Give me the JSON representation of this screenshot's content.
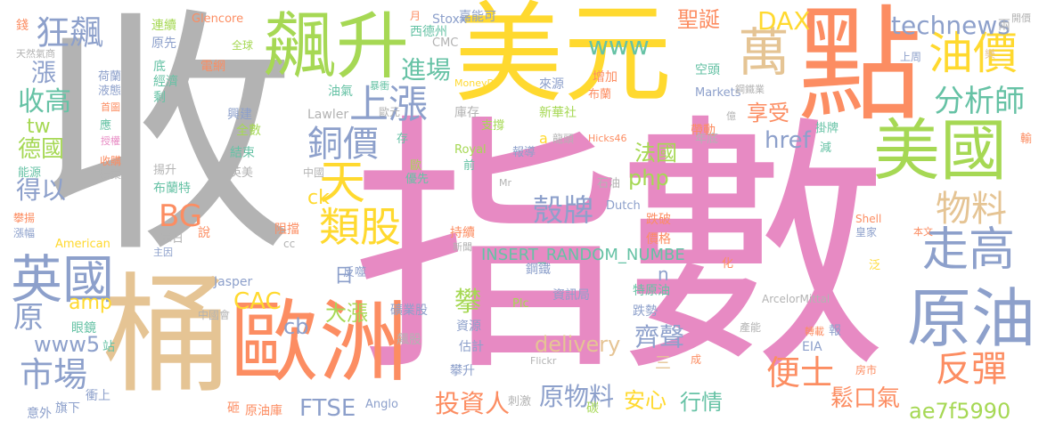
{
  "colors": {
    "pink": "#e78ac3",
    "gray": "#b3b3b3",
    "yellow": "#ffd92f",
    "orange": "#fc8d62",
    "green": "#a6d854",
    "blue": "#8da0cb",
    "tan": "#e5c494",
    "teal": "#66c2a5"
  },
  "words": [
    "收",
    "指數",
    "美元",
    "點",
    "桶",
    "歐洲",
    "飆升",
    "美國",
    "原油",
    "油價",
    "萬",
    "英國",
    "走高",
    "分析師",
    "反彈",
    "類股",
    "天",
    "狂飆",
    "上漲",
    "銅價",
    "物料",
    "technews",
    "便士",
    "市場",
    "收高",
    "進場",
    "殼牌",
    "BG",
    "DAX",
    "聖誕",
    "www",
    "CAC",
    "享受",
    "原物料",
    "投資人",
    "齊聲",
    "FTSE",
    "鬆口氣",
    "www5",
    "安心",
    "攀",
    "行情",
    "ae7f5990",
    "delivery",
    "href",
    "INSERT_RANDOM_NUMBE",
    "amp",
    "大漲",
    "法國",
    "php",
    "原",
    "得以",
    "德國",
    "漲",
    "tw",
    "ck",
    "cb",
    "日",
    "Glencore",
    "Stoxx",
    "Lawler",
    "Jasper",
    "ArcelorMittal",
    "Shell",
    "American",
    "Anglo",
    "Plc",
    "Royal",
    "Dutch",
    "Markets",
    "Hicks46",
    "MoneyDJ",
    "CMC",
    "Mr",
    "Flickr",
    "EIA",
    "嘉能可",
    "西德州",
    "資訊局",
    "鋼鐵",
    "礦業股",
    "特原油",
    "跌勢",
    "估計",
    "攀升",
    "飆股",
    "資源",
    "中國會",
    "原油庫",
    "刺激",
    "衝上",
    "旗下",
    "意外",
    "眼鏡",
    "站",
    "漲幅",
    "攀揚",
    "布蘭特",
    "提案",
    "收購",
    "能源",
    "天然氣商",
    "荷蘭",
    "液態",
    "首圖",
    "授權",
    "連續",
    "原先",
    "全球",
    "電網",
    "底",
    "經濟",
    "剩",
    "應",
    "油氣",
    "暴衝",
    "歐元",
    "庫存",
    "支撐",
    "來源",
    "新華社",
    "布蘭",
    "增加",
    "空頭",
    "上周",
    "鋼鐵業",
    "帶動",
    "掛牌",
    "減",
    "年底",
    "龍頭",
    "報導",
    "前",
    "歐",
    "優先",
    "石油",
    "持續",
    "跌破",
    "價格",
    "興建",
    "全數",
    "結束",
    "揚升",
    "英美",
    "阻擋",
    "反噬",
    "說",
    "單日",
    "主因",
    "本文",
    "皇家",
    "泛",
    "化",
    "報",
    "轉載",
    "產能",
    "房市",
    "成",
    "碳",
    "砸",
    "錢",
    "兩",
    "開價",
    "輸",
    "月",
    "中國",
    "存",
    "a",
    "n",
    "三",
    "新聞",
    "cc",
    "億",
    "樂"
  ]
}
